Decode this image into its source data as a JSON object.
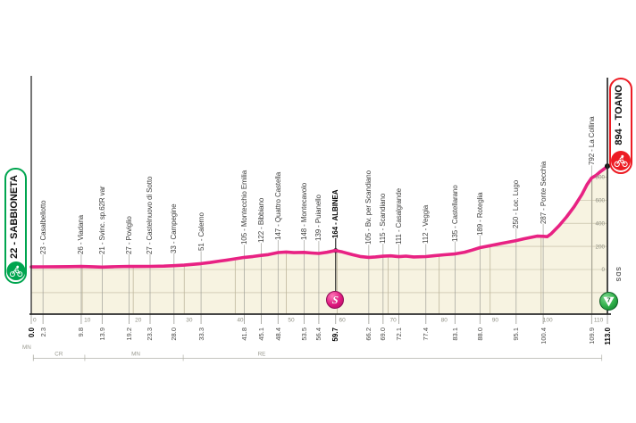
{
  "stage": {
    "start": {
      "label": "22 - SABBIONETA",
      "color": "#00a54f"
    },
    "finish": {
      "label": "894 - TOANO",
      "color": "#ed1c24"
    }
  },
  "badges": {
    "sprint": {
      "label": "S",
      "km": 59.7
    },
    "finish_circle": {
      "label": "7"
    },
    "sds": "SDS"
  },
  "chart_data": {
    "type": "area",
    "title": "",
    "xlabel": "",
    "ylabel": "",
    "xlim": [
      0,
      113
    ],
    "x_ticks": [
      0,
      10,
      20,
      30,
      40,
      50,
      60,
      70,
      80,
      90,
      100,
      110
    ],
    "y_ticks": [
      0,
      200,
      400,
      600,
      800
    ],
    "grid": true,
    "legend_position": "none",
    "waypoints": [
      {
        "km": 0.0,
        "km_label": "0.0",
        "elev": 22,
        "name": "22 - SABBIONETA",
        "type": "start",
        "bold": true
      },
      {
        "km": 2.3,
        "km_label": "2.3",
        "elev": 23,
        "name": "23 - Casalbellotto"
      },
      {
        "km": 9.8,
        "km_label": "9.8",
        "elev": 26,
        "name": "26 - Viadana"
      },
      {
        "km": 13.9,
        "km_label": "13.9",
        "elev": 21,
        "name": "21 - Svinc. sp.62R var"
      },
      {
        "km": 19.2,
        "km_label": "19.2",
        "elev": 27,
        "name": "27 - Poviglio"
      },
      {
        "km": 23.3,
        "km_label": "23.3",
        "elev": 27,
        "name": "27 - Castelnuovo di Sotto"
      },
      {
        "km": 28.0,
        "km_label": "28.0",
        "elev": 33,
        "name": "33 - Campegine"
      },
      {
        "km": 33.3,
        "km_label": "33.3",
        "elev": 51,
        "name": "51 - Calerno"
      },
      {
        "km": 41.8,
        "km_label": "41.8",
        "elev": 105,
        "name": "105 - Montecchio Emilia"
      },
      {
        "km": 45.1,
        "km_label": "45.1",
        "elev": 122,
        "name": "122 - Bibbiano"
      },
      {
        "km": 48.4,
        "km_label": "48.4",
        "elev": 147,
        "name": "147 - Quattro Castella"
      },
      {
        "km": 53.5,
        "km_label": "53.5",
        "elev": 148,
        "name": "148 - Montecavolo"
      },
      {
        "km": 56.4,
        "km_label": "56.4",
        "elev": 139,
        "name": "139 - Puianello"
      },
      {
        "km": 59.7,
        "km_label": "59.7",
        "elev": 164,
        "name": "164 - ALBINEA",
        "type": "sprint",
        "bold": true
      },
      {
        "km": 66.2,
        "km_label": "66.2",
        "elev": 105,
        "name": "105 - Bv. per Scandiano"
      },
      {
        "km": 69.0,
        "km_label": "69.0",
        "elev": 115,
        "name": "115 - Scandiano"
      },
      {
        "km": 72.1,
        "km_label": "72.1",
        "elev": 111,
        "name": "111 - Casalgrande"
      },
      {
        "km": 77.4,
        "km_label": "77.4",
        "elev": 112,
        "name": "112 - Veggia"
      },
      {
        "km": 83.1,
        "km_label": "83.1",
        "elev": 135,
        "name": "135 - Castellarano"
      },
      {
        "km": 88.0,
        "km_label": "88.0",
        "elev": 189,
        "name": "189 - Roteglia"
      },
      {
        "km": 95.1,
        "km_label": "95.1",
        "elev": 250,
        "name": "250 - Loc. Lugo"
      },
      {
        "km": 100.4,
        "km_label": "100.4",
        "elev": 287,
        "name": "287 - Ponte Secchia"
      },
      {
        "km": 109.9,
        "km_label": "109.9",
        "elev": 792,
        "name": "792 - La Collina"
      },
      {
        "km": 113.0,
        "km_label": "113.0",
        "elev": 894,
        "name": "894 - TOANO",
        "type": "finish",
        "bold": true
      }
    ],
    "profile": [
      [
        0,
        22
      ],
      [
        2.3,
        23
      ],
      [
        5,
        24
      ],
      [
        7.5,
        25
      ],
      [
        9.8,
        26
      ],
      [
        12,
        24
      ],
      [
        13.9,
        21
      ],
      [
        16,
        24
      ],
      [
        19.2,
        27
      ],
      [
        21,
        26
      ],
      [
        23.3,
        27
      ],
      [
        26,
        29
      ],
      [
        28,
        33
      ],
      [
        30,
        38
      ],
      [
        31.5,
        44
      ],
      [
        33.3,
        51
      ],
      [
        35,
        60
      ],
      [
        37,
        73
      ],
      [
        39,
        86
      ],
      [
        41.8,
        105
      ],
      [
        43.5,
        113
      ],
      [
        45.1,
        122
      ],
      [
        46.5,
        129
      ],
      [
        48.4,
        147
      ],
      [
        50,
        151
      ],
      [
        51.5,
        146
      ],
      [
        53.5,
        148
      ],
      [
        55,
        143
      ],
      [
        56.4,
        139
      ],
      [
        58,
        149
      ],
      [
        59.7,
        164
      ],
      [
        61,
        152
      ],
      [
        63,
        128
      ],
      [
        64.5,
        113
      ],
      [
        66.2,
        105
      ],
      [
        67.5,
        109
      ],
      [
        69,
        115
      ],
      [
        70.5,
        118
      ],
      [
        72.1,
        111
      ],
      [
        73.5,
        116
      ],
      [
        75,
        109
      ],
      [
        77.4,
        112
      ],
      [
        79,
        119
      ],
      [
        81,
        127
      ],
      [
        83.1,
        135
      ],
      [
        85,
        150
      ],
      [
        86.5,
        168
      ],
      [
        88,
        189
      ],
      [
        90,
        206
      ],
      [
        92,
        224
      ],
      [
        93.5,
        236
      ],
      [
        95.1,
        250
      ],
      [
        96.5,
        264
      ],
      [
        98,
        278
      ],
      [
        99.2,
        289
      ],
      [
        100.4,
        287
      ],
      [
        101.2,
        284
      ],
      [
        102,
        310
      ],
      [
        103.5,
        378
      ],
      [
        105,
        455
      ],
      [
        106.5,
        545
      ],
      [
        108,
        650
      ],
      [
        109,
        735
      ],
      [
        109.9,
        792
      ],
      [
        110.8,
        815
      ],
      [
        111.6,
        846
      ],
      [
        112.3,
        868
      ],
      [
        113,
        894
      ]
    ],
    "provinces": {
      "labels": [
        {
          "label": "MN",
          "center_km": -0.9,
          "raised": true
        },
        {
          "label": "CR",
          "center_km": 5.4
        },
        {
          "label": "MN",
          "center_km": 20.5
        },
        {
          "label": "RE",
          "center_km": 45.2
        }
      ],
      "boundaries_km": [
        0.4,
        10.5,
        29.8
      ],
      "line_start_km": 0.4,
      "line_end_km": 111.9
    }
  },
  "colors": {
    "profile_pink": "#e82283",
    "fill_cream": "#f7f3e1",
    "start_green": "#00a54f",
    "finish_red": "#ed1c24",
    "axis_dark": "#2b2b2b",
    "grid": "#beb79d",
    "connector": "#9a9a94",
    "tick_text": "#8f8f83",
    "label_text": "#414140"
  }
}
